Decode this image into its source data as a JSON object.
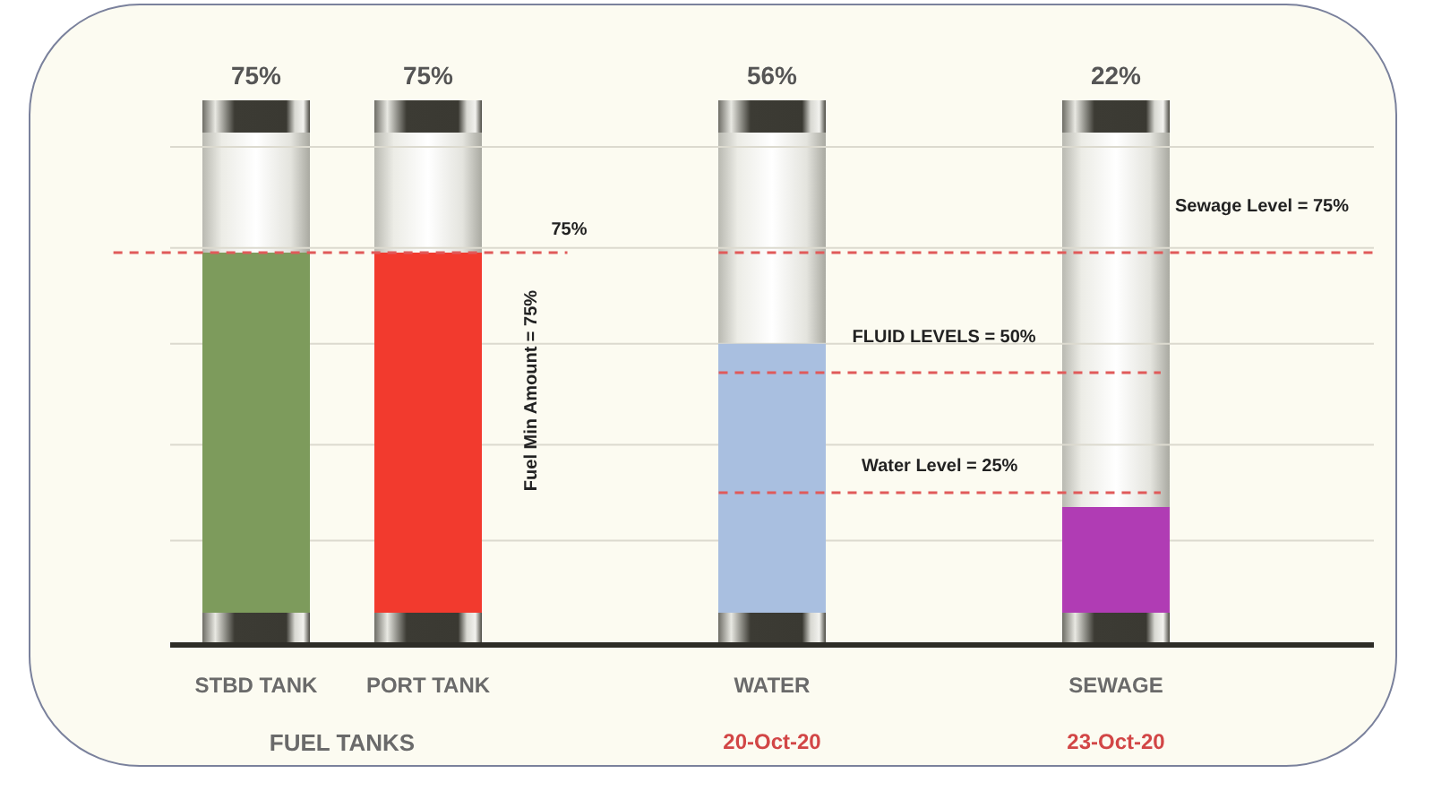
{
  "chart_data": {
    "type": "bar",
    "categories": [
      "STBD TANK",
      "PORT TANK",
      null,
      "WATER",
      null,
      "SEWAGE",
      null
    ],
    "values": [
      75,
      75,
      null,
      56,
      null,
      22,
      null
    ],
    "colors": [
      "#7d9b5c",
      "#f23a2e",
      null,
      "#a9bfe0",
      null,
      "#b03cb4",
      null
    ],
    "value_labels": [
      "75%",
      "75%",
      null,
      "56%",
      null,
      "22%",
      null
    ],
    "ylim": [
      0,
      100
    ],
    "yticks": [
      {
        "value": 15,
        "label": null
      },
      {
        "value": 35,
        "label": null
      },
      {
        "value": 56,
        "label": null
      },
      {
        "value": 76,
        "label": null
      },
      {
        "value": 97,
        "label": null
      }
    ],
    "grid": "y",
    "tick_labels": "x",
    "ref_lines": [
      {
        "axis": "y",
        "value": 75,
        "label": "Sewage Level = 75%",
        "color": "#e05a5a",
        "line_style": "dashed"
      },
      {
        "axis": "y",
        "value": 50,
        "label": "FLUID LEVELS = 50%",
        "color": "#e05a5a",
        "line_style": "dashed"
      },
      {
        "axis": "y",
        "value": 25,
        "label": "Water Level = 25%",
        "color": "#e05a5a",
        "line_style": "dashed"
      }
    ],
    "annotations": [
      "Fuel Min Amount = 75%",
      {
        "text": "75%",
        "y": 75
      },
      "FUEL TANKS",
      "20-Oct-20",
      "23-Oct-20"
    ]
  }
}
